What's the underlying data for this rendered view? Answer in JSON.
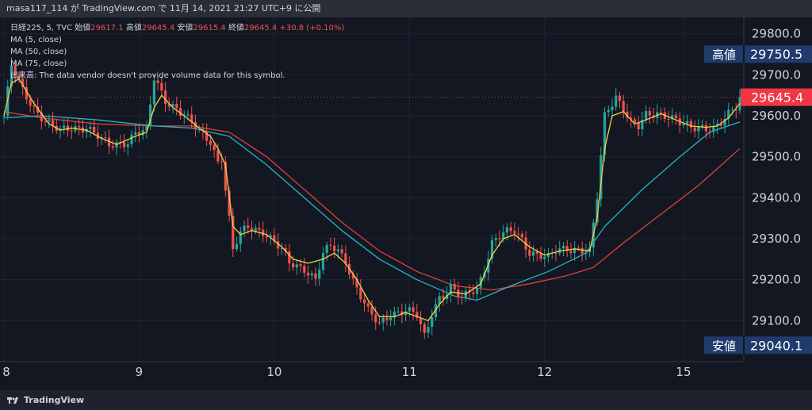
{
  "header": {
    "text": "masa117_114 が TradingView.com で 11月 14, 2021 21:27 UTC+9 に公開"
  },
  "footer": {
    "brand": "TradingView"
  },
  "legend": {
    "symbol": "日経225, 5, TVC",
    "open_label": "始値",
    "open": "29617.1",
    "high_label": "高値",
    "high": "29645.4",
    "low_label": "安値",
    "low": "29615.4",
    "close_label": "終値",
    "close": "29645.4",
    "change": "+30.8 (+0.10%)",
    "ma1": "MA (5, close)",
    "ma2": "MA (50, close)",
    "ma3": "MA (75, close)",
    "volume_label": "出来高:",
    "volume_note": "The data vendor doesn't provide volume data for this symbol."
  },
  "markers": {
    "high_label": "高値",
    "high_value": "29750.5",
    "low_label": "安値",
    "low_value": "29040.1",
    "last_value": "29645.4"
  },
  "colors": {
    "background": "#131722",
    "up": "#26a69a",
    "down": "#ef5350",
    "ma5": "#f5d142",
    "ma50": "#26b5c9",
    "ma75": "#e0413a",
    "marker_bg": "#1f3a6b",
    "last_bg": "#f23645"
  },
  "chart_data": {
    "type": "candlestick",
    "symbol": "日経225",
    "x_ticks": [
      "8",
      "9",
      "10",
      "11",
      "12",
      "15"
    ],
    "y_ticks": [
      29100.0,
      29200.0,
      29300.0,
      29400.0,
      29500.0,
      29600.0,
      29700.0,
      29800.0
    ],
    "y_tick_labels": [
      "29100.0",
      "29200.0",
      "29300.0",
      "29400.0",
      "29500.0",
      "29600.0",
      "29700.0",
      "29800.0"
    ],
    "ylim": [
      29000,
      29840
    ],
    "session_high": 29750.5,
    "session_low": 29040.1,
    "last": 29645.4,
    "price_path": [
      [
        0,
        29600
      ],
      [
        2,
        29720
      ],
      [
        5,
        29660
      ],
      [
        8,
        29620
      ],
      [
        12,
        29580
      ],
      [
        15,
        29560
      ],
      [
        18,
        29570
      ],
      [
        22,
        29575
      ],
      [
        26,
        29540
      ],
      [
        28,
        29525
      ],
      [
        33,
        29540
      ],
      [
        35,
        29560
      ],
      [
        38,
        29560
      ],
      [
        40,
        29690
      ],
      [
        43,
        29640
      ],
      [
        46,
        29620
      ],
      [
        52,
        29560
      ],
      [
        55,
        29540
      ],
      [
        57,
        29490
      ],
      [
        58,
        29500
      ],
      [
        59,
        29420
      ],
      [
        61,
        29270
      ],
      [
        63,
        29310
      ],
      [
        65,
        29330
      ],
      [
        69,
        29320
      ],
      [
        74,
        29270
      ],
      [
        76,
        29240
      ],
      [
        80,
        29230
      ],
      [
        83,
        29200
      ],
      [
        85,
        29260
      ],
      [
        87,
        29280
      ],
      [
        89,
        29270
      ],
      [
        91,
        29250
      ],
      [
        93,
        29200
      ],
      [
        95,
        29160
      ],
      [
        97,
        29120
      ],
      [
        100,
        29090
      ],
      [
        103,
        29120
      ],
      [
        107,
        29125
      ],
      [
        110,
        29110
      ],
      [
        112,
        29060
      ],
      [
        114,
        29120
      ],
      [
        116,
        29160
      ],
      [
        118,
        29170
      ],
      [
        119,
        29180
      ],
      [
        121,
        29160
      ],
      [
        122,
        29150
      ],
      [
        124,
        29170
      ],
      [
        126,
        29180
      ],
      [
        128,
        29230
      ],
      [
        130,
        29290
      ],
      [
        133,
        29310
      ],
      [
        136,
        29320
      ],
      [
        138,
        29300
      ],
      [
        140,
        29270
      ],
      [
        142,
        29260
      ],
      [
        145,
        29250
      ],
      [
        147,
        29270
      ],
      [
        150,
        29280
      ],
      [
        153,
        29275
      ],
      [
        156,
        29265
      ],
      [
        158,
        29400
      ],
      [
        160,
        29600
      ],
      [
        161,
        29620
      ],
      [
        163,
        29650
      ],
      [
        165,
        29620
      ],
      [
        167,
        29580
      ],
      [
        169,
        29570
      ],
      [
        171,
        29600
      ],
      [
        174,
        29610
      ],
      [
        177,
        29600
      ],
      [
        180,
        29580
      ],
      [
        183,
        29570
      ],
      [
        186,
        29575
      ],
      [
        189,
        29570
      ],
      [
        191,
        29580
      ],
      [
        193,
        29600
      ],
      [
        195,
        29620
      ],
      [
        196,
        29645.4
      ]
    ],
    "ma5": [
      [
        0,
        29600
      ],
      [
        2,
        29680
      ],
      [
        4,
        29690
      ],
      [
        8,
        29630
      ],
      [
        12,
        29580
      ],
      [
        15,
        29565
      ],
      [
        18,
        29570
      ],
      [
        22,
        29565
      ],
      [
        26,
        29545
      ],
      [
        30,
        29530
      ],
      [
        35,
        29550
      ],
      [
        38,
        29560
      ],
      [
        40,
        29620
      ],
      [
        42,
        29650
      ],
      [
        45,
        29620
      ],
      [
        48,
        29600
      ],
      [
        52,
        29570
      ],
      [
        55,
        29550
      ],
      [
        57,
        29520
      ],
      [
        59,
        29480
      ],
      [
        61,
        29330
      ],
      [
        63,
        29310
      ],
      [
        66,
        29320
      ],
      [
        70,
        29310
      ],
      [
        74,
        29280
      ],
      [
        77,
        29250
      ],
      [
        81,
        29240
      ],
      [
        85,
        29250
      ],
      [
        88,
        29265
      ],
      [
        91,
        29240
      ],
      [
        94,
        29200
      ],
      [
        97,
        29150
      ],
      [
        100,
        29110
      ],
      [
        104,
        29110
      ],
      [
        107,
        29120
      ],
      [
        110,
        29110
      ],
      [
        113,
        29100
      ],
      [
        116,
        29140
      ],
      [
        119,
        29170
      ],
      [
        123,
        29165
      ],
      [
        127,
        29190
      ],
      [
        130,
        29260
      ],
      [
        133,
        29300
      ],
      [
        136,
        29310
      ],
      [
        140,
        29280
      ],
      [
        144,
        29260
      ],
      [
        148,
        29270
      ],
      [
        152,
        29275
      ],
      [
        156,
        29270
      ],
      [
        158,
        29350
      ],
      [
        160,
        29520
      ],
      [
        162,
        29600
      ],
      [
        165,
        29610
      ],
      [
        168,
        29580
      ],
      [
        171,
        29590
      ],
      [
        175,
        29605
      ],
      [
        179,
        29590
      ],
      [
        183,
        29575
      ],
      [
        187,
        29572
      ],
      [
        190,
        29575
      ],
      [
        193,
        29595
      ],
      [
        196,
        29630
      ]
    ],
    "ma50": [
      [
        0,
        29595
      ],
      [
        10,
        29600
      ],
      [
        25,
        29590
      ],
      [
        40,
        29575
      ],
      [
        50,
        29570
      ],
      [
        60,
        29550
      ],
      [
        70,
        29480
      ],
      [
        80,
        29400
      ],
      [
        90,
        29320
      ],
      [
        100,
        29250
      ],
      [
        110,
        29200
      ],
      [
        120,
        29160
      ],
      [
        126,
        29150
      ],
      [
        135,
        29185
      ],
      [
        145,
        29220
      ],
      [
        155,
        29265
      ],
      [
        160,
        29330
      ],
      [
        170,
        29420
      ],
      [
        180,
        29500
      ],
      [
        188,
        29560
      ],
      [
        196,
        29585
      ]
    ],
    "ma75": [
      [
        0,
        29610
      ],
      [
        10,
        29595
      ],
      [
        25,
        29580
      ],
      [
        40,
        29575
      ],
      [
        50,
        29575
      ],
      [
        60,
        29560
      ],
      [
        70,
        29500
      ],
      [
        80,
        29420
      ],
      [
        90,
        29340
      ],
      [
        100,
        29270
      ],
      [
        110,
        29220
      ],
      [
        120,
        29185
      ],
      [
        130,
        29175
      ],
      [
        140,
        29190
      ],
      [
        150,
        29210
      ],
      [
        157,
        29230
      ],
      [
        165,
        29290
      ],
      [
        175,
        29360
      ],
      [
        185,
        29430
      ],
      [
        196,
        29520
      ]
    ]
  }
}
